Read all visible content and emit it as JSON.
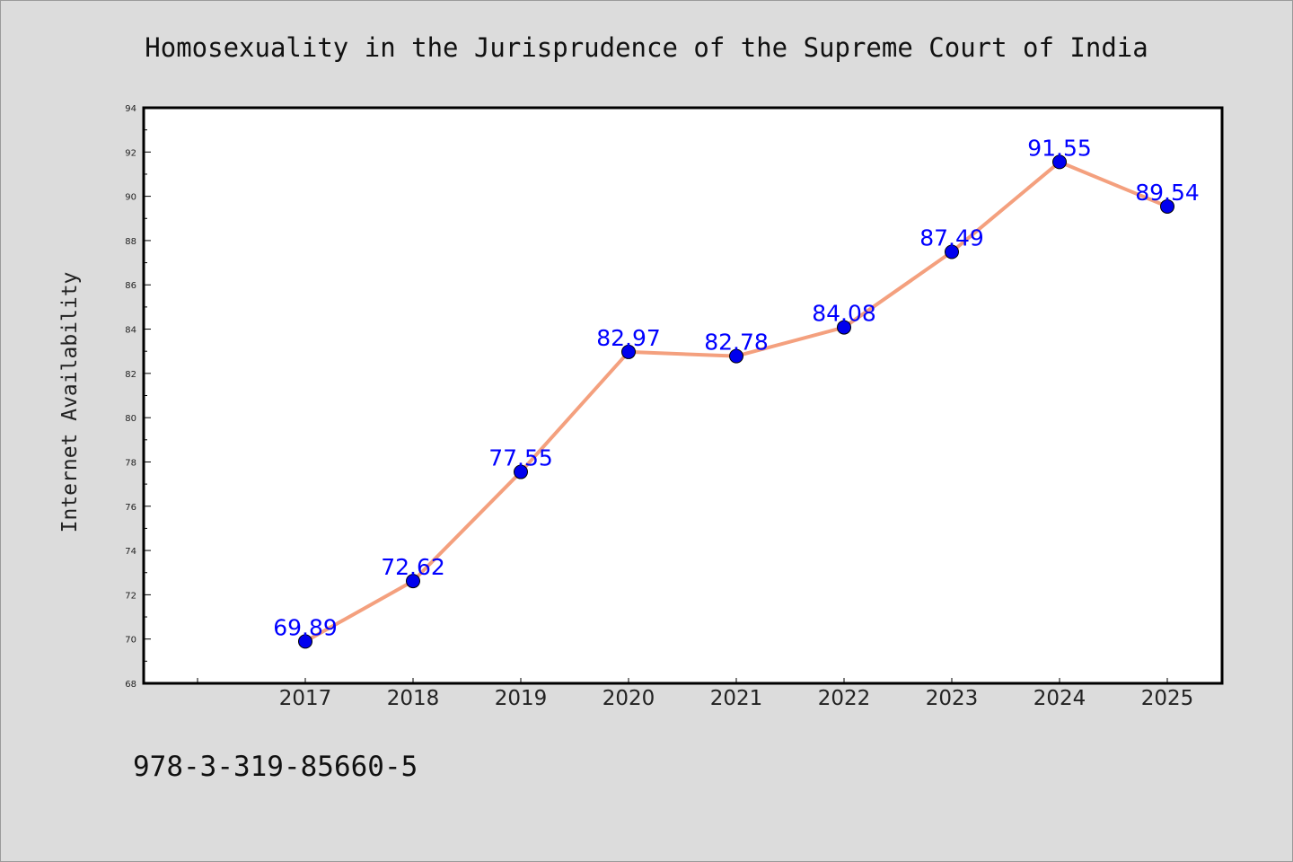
{
  "chart_data": {
    "type": "line",
    "title": "Homosexuality in the Jurisprudence of the Supreme Court of India",
    "xlabel": "",
    "ylabel": "Internet Availability",
    "categories": [
      "2017",
      "2018",
      "2019",
      "2020",
      "2021",
      "2022",
      "2023",
      "2024",
      "2025"
    ],
    "series": [
      {
        "values": [
          69.89,
          72.62,
          77.55,
          82.97,
          82.78,
          84.08,
          87.49,
          91.55,
          89.54
        ],
        "data_labels": [
          "69.89",
          "72.62",
          "77.55",
          "82.97",
          "82.78",
          "84.08",
          "87.49",
          "91.55",
          "89.54"
        ]
      }
    ],
    "ylim": [
      68,
      94
    ],
    "yticks": [
      "68",
      "70",
      "72",
      "74",
      "76",
      "78",
      "80",
      "82",
      "84",
      "86",
      "88",
      "90",
      "92",
      "94"
    ],
    "grid": false,
    "legend": "none",
    "colors": {
      "line": "#f4a07e",
      "marker": "#0000ee",
      "data_label": "#0000ff",
      "background": "#dcdcdc",
      "plot_background": "#ffffff"
    }
  },
  "footer": {
    "isbn": "978-3-319-85660-5"
  }
}
